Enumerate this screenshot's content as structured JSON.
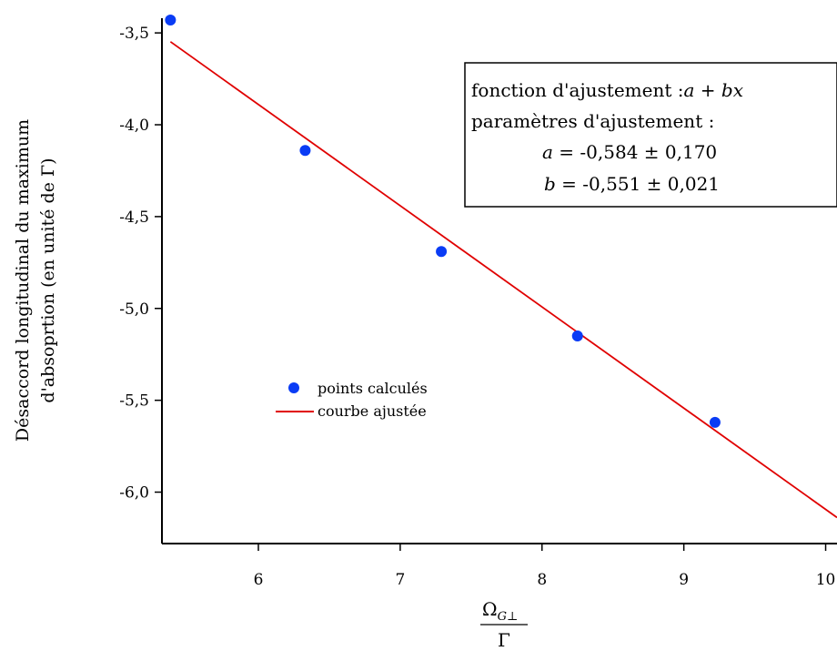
{
  "chart_data": {
    "type": "scatter",
    "xlabel_numerator": "Ω",
    "xlabel_subscript": "G⊥",
    "xlabel_denominator": "Γ",
    "ylabel_line1": "Désaccord longitudinal du maximum",
    "ylabel_line2": "d'absoprtion (en unité de Γ)",
    "xlim": [
      5.32,
      10.08
    ],
    "ylim": [
      -6.28,
      -3.42
    ],
    "x_ticks": [
      6,
      7,
      8,
      9,
      10
    ],
    "x_tick_labels": [
      "6",
      "7",
      "8",
      "9",
      "10"
    ],
    "y_ticks": [
      -3.5,
      -4.0,
      -4.5,
      -5.0,
      -5.5,
      -6.0
    ],
    "y_tick_labels": [
      "-3,5",
      "-4,0",
      "-4,5",
      "-5,0",
      "-5,5",
      "-6,0"
    ],
    "series": [
      {
        "name": "points calculés",
        "kind": "scatter",
        "color": "#0a3cf5",
        "x": [
          5.38,
          6.33,
          7.29,
          8.25,
          9.22
        ],
        "y": [
          -3.43,
          -4.14,
          -4.69,
          -5.15,
          -5.62
        ]
      },
      {
        "name": "courbe ajustée",
        "kind": "line",
        "color": "#e00000",
        "x": [
          5.38,
          10.08
        ],
        "y": [
          -3.548,
          -6.138
        ]
      }
    ],
    "annotation": {
      "line1_text": "fonction d'ajustement :",
      "line1_formula": "a + bx",
      "line2_text": "paramètres d'ajustement :",
      "a_var": "a",
      "a_value": " = -0,584 ± 0,170",
      "b_var": "b",
      "b_value": " = -0,551 ± 0,021"
    },
    "legend_position": "center-left",
    "grid": false
  }
}
